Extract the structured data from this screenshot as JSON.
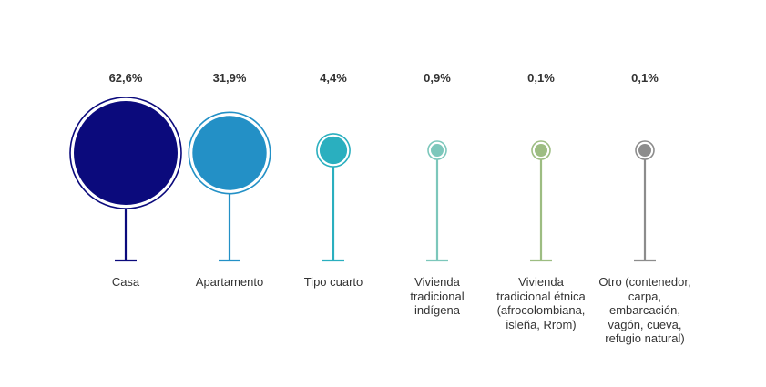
{
  "chart_data": {
    "type": "bubble-lollipop",
    "title": "",
    "xlabel": "",
    "ylabel": "",
    "grid": false,
    "categories": [
      "Casa",
      "Apartamento",
      "Tipo cuarto",
      "Vivienda tradicional indígena",
      "Vivienda tradicional étnica (afrocolombiana, isleña, Rrom)",
      "Otro (contenedor, carpa, embarcación, vagón, cueva, refugio natural)"
    ],
    "category_lines": [
      [
        "Casa"
      ],
      [
        "Apartamento"
      ],
      [
        "Tipo cuarto"
      ],
      [
        "Vivienda",
        "tradicional",
        "indígena"
      ],
      [
        "Vivienda",
        "tradicional étnica",
        "(afrocolombiana,",
        "isleña, Rrom)"
      ],
      [
        "Otro (contenedor,",
        "carpa,",
        "embarcación,",
        "vagón, cueva,",
        "refugio natural)"
      ]
    ],
    "values": [
      62.6,
      31.9,
      4.4,
      0.9,
      0.1,
      0.1
    ],
    "value_labels": [
      "62,6%",
      "31,9%",
      "4,4%",
      "0,9%",
      "0,1%",
      "0,1%"
    ],
    "colors": [
      "#0b0a7c",
      "#2390c6",
      "#2aafbf",
      "#7cc7bb",
      "#9dbd82",
      "#8c8c8c"
    ]
  }
}
